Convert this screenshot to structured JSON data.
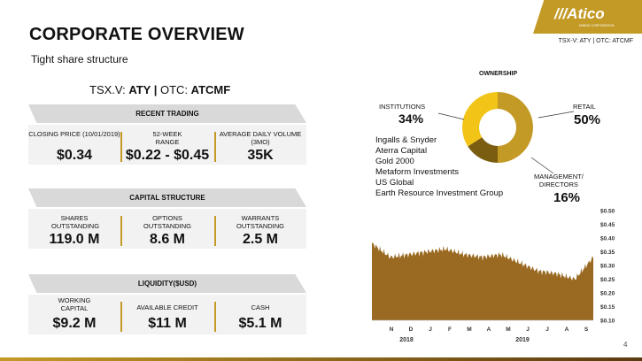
{
  "slide": {
    "title": "CORPORATE OVERVIEW",
    "subtitle": "Tight share structure",
    "page_number": "4"
  },
  "logo": {
    "brand": "///Atico",
    "tagline": "MINING CORPORATION",
    "ticker": "TSX-V: ATY  |  OTC: ATCMF"
  },
  "ticker_line": {
    "prefix1": "TSX.V: ",
    "sym1": "ATY",
    "sep": "  |  ",
    "prefix2": "OTC: ",
    "sym2": "ATCMF"
  },
  "recent_trading": {
    "title": "RECENT TRADING",
    "cells": [
      {
        "label": "CLOSING PRICE (10/01/2019)",
        "value": "$0.34"
      },
      {
        "label": "52-WEEK RANGE",
        "value": "$0.22 - $0.45"
      },
      {
        "label": "AVERAGE DAILY VOLUME (3MO)",
        "value": "35K"
      }
    ]
  },
  "capital_structure": {
    "title": "CAPITAL STRUCTURE",
    "cells": [
      {
        "label": "SHARES OUTSTANDING",
        "value": "119.0 M"
      },
      {
        "label": "OPTIONS OUTSTANDING",
        "value": "8.6 M"
      },
      {
        "label": "WARRANTS OUTSTANDING",
        "value": "2.5 M"
      }
    ]
  },
  "liquidity": {
    "title": "LIQUIDITY($USD)",
    "cells": [
      {
        "label": "WORKING CAPITAL",
        "value": "$9.2 M"
      },
      {
        "label": "AVAILABLE CREDIT",
        "value": "$11 M"
      },
      {
        "label": "CASH",
        "value": "$5.1 M"
      }
    ]
  },
  "ownership": {
    "title": "OWNERSHIP",
    "institutions_label": "INSTITUTIONS",
    "institutions_pct": "34%",
    "retail_label": "RETAIL",
    "retail_pct": "50%",
    "mgmt_label_1": "MANAGEMENT/",
    "mgmt_label_2": "DIRECTORS",
    "mgmt_pct": "16%",
    "holders": [
      "Ingalls & Snyder",
      "Aterra Capital",
      "Gold 2000",
      "Metaform Investments",
      "US Global",
      "Earth Resource Investment Group"
    ],
    "colors": {
      "retail": "#c49a26",
      "management": "#7a5d10",
      "institutions": "#f2c418"
    }
  },
  "chart_data": [
    {
      "type": "pie",
      "title": "OWNERSHIP",
      "categories": [
        "RETAIL",
        "MANAGEMENT/ DIRECTORS",
        "INSTITUTIONS"
      ],
      "values": [
        50,
        16,
        34
      ]
    },
    {
      "type": "area",
      "xlabel": "",
      "ylabel": "",
      "x_tick_labels": [
        "N",
        "D",
        "J",
        "F",
        "M",
        "A",
        "M",
        "J",
        "J",
        "A",
        "S"
      ],
      "year_labels": [
        "2018",
        "2019"
      ],
      "y_tick_labels": [
        "$0.10",
        "$0.15",
        "$0.20",
        "$0.25",
        "$0.30",
        "$0.35",
        "$0.40",
        "$0.45",
        "$0.50"
      ],
      "ylim": [
        0.1,
        0.5
      ],
      "color": "#9a6a22",
      "x": [
        "Oct-2018",
        "Nov-2018",
        "Dec-2018",
        "Jan-2019",
        "Feb-2019",
        "Mar-2019",
        "Apr-2019",
        "May-2019",
        "Jun-2019",
        "Jul-2019",
        "Aug-2019",
        "Sep-2019",
        "Oct-2019"
      ],
      "values": [
        0.38,
        0.33,
        0.34,
        0.35,
        0.36,
        0.34,
        0.33,
        0.34,
        0.31,
        0.28,
        0.27,
        0.25,
        0.33
      ]
    }
  ]
}
